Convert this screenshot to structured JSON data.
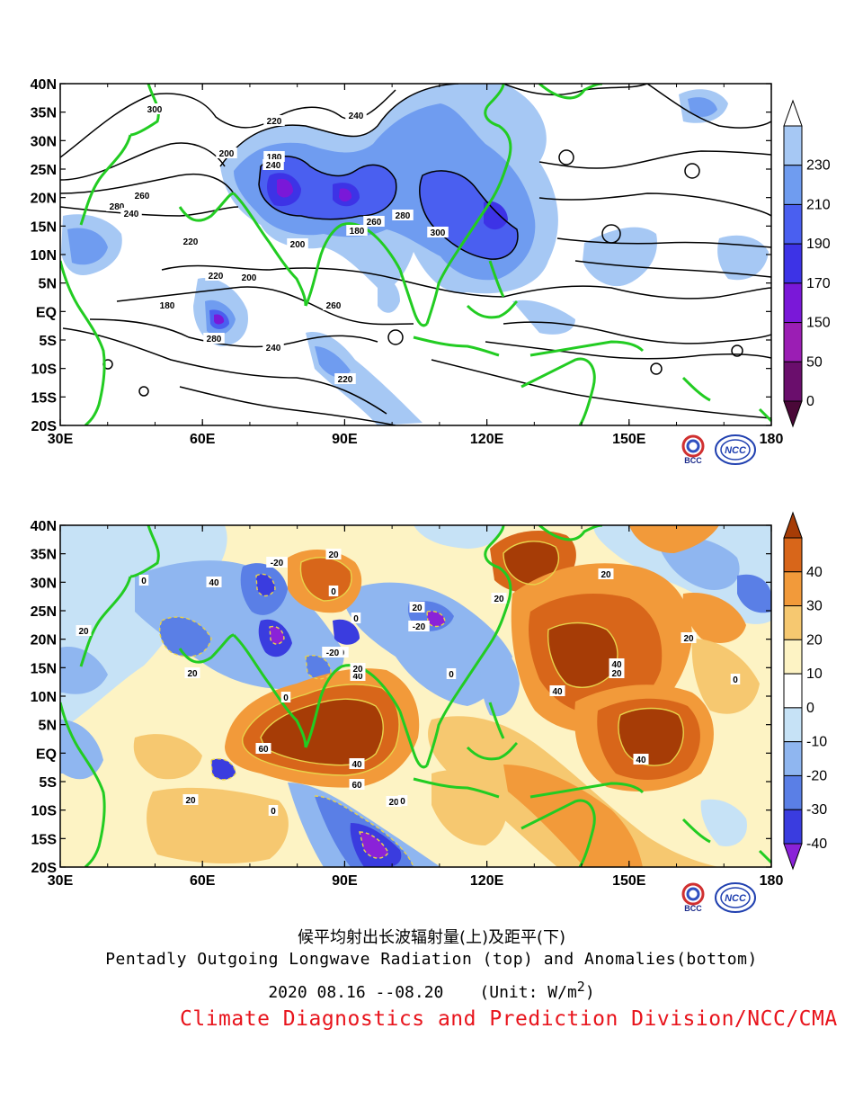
{
  "top_map": {
    "lat_labels": [
      "40N",
      "35N",
      "30N",
      "25N",
      "20N",
      "15N",
      "10N",
      "5N",
      "EQ",
      "5S",
      "10S",
      "15S",
      "20S"
    ],
    "lon_labels": [
      "30E",
      "60E",
      "90E",
      "120E",
      "150E",
      "180"
    ],
    "colorbar": {
      "labels": [
        "230",
        "210",
        "190",
        "170",
        "150",
        "50",
        "0"
      ],
      "colors": [
        "#ffffff",
        "#a6c8f4",
        "#6f9cf0",
        "#4a5ff0",
        "#3d33e6",
        "#7a18d8",
        "#9b1eb4",
        "#6a0e6c",
        "#4a0838"
      ]
    },
    "contour_labels": [
      "300",
      "240",
      "220",
      "200",
      "180",
      "260",
      "280",
      "240",
      "220",
      "200",
      "180",
      "260",
      "280",
      "300",
      "240",
      "220",
      "200",
      "180",
      "260",
      "280",
      "240",
      "220"
    ]
  },
  "bottom_map": {
    "lat_labels": [
      "40N",
      "35N",
      "30N",
      "25N",
      "20N",
      "15N",
      "10N",
      "5N",
      "EQ",
      "5S",
      "10S",
      "15S",
      "20S"
    ],
    "lon_labels": [
      "30E",
      "60E",
      "90E",
      "120E",
      "150E",
      "180"
    ],
    "colorbar": {
      "labels": [
        "40",
        "30",
        "20",
        "10",
        "0",
        "-10",
        "-20",
        "-30",
        "-40"
      ],
      "colors": [
        "#a63c06",
        "#d8661a",
        "#f29a3a",
        "#f6c870",
        "#fdf3c4",
        "#ffffff",
        "#c6e2f6",
        "#8fb6f0",
        "#5a7fe6",
        "#3a3cdf",
        "#8a22d8"
      ]
    },
    "contour_labels": [
      "20",
      "-20",
      "0",
      "40",
      "0",
      "20",
      "-20",
      "20",
      "-20",
      "0",
      "20",
      "40",
      "0",
      "60",
      "20",
      "40",
      "60",
      "20",
      "0",
      "20",
      "0",
      "40",
      "40",
      "20",
      "20",
      "0",
      "-20",
      "20",
      "40",
      "20",
      "0"
    ]
  },
  "captions": {
    "title_cn": "候平均射出长波辐射量(上)及距平(下)",
    "title_en": "Pentadly Outgoing Longwave Radiation (top) and Anomalies(bottom)",
    "date": "2020  08.16 --08.20",
    "unit_prefix": "(Unit: W/m",
    "unit_sup": "2",
    "unit_suffix": ")",
    "org": "Climate Diagnostics and Prediction Division/NCC/CMA"
  },
  "logos": {
    "bcc_text": "BCC",
    "ncc_text": "NCC"
  }
}
